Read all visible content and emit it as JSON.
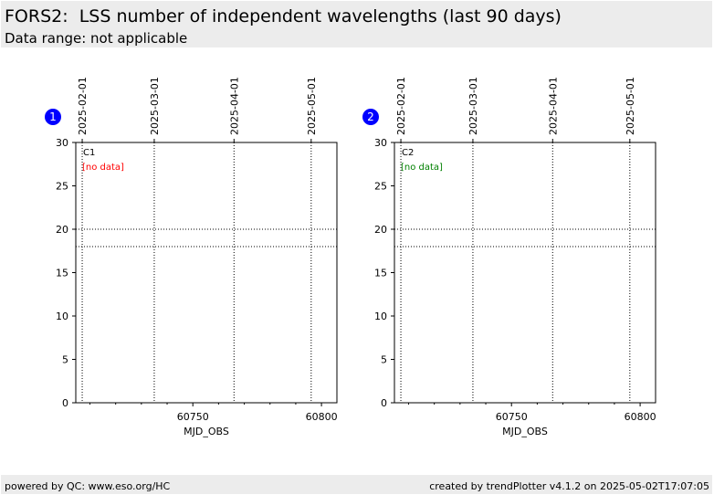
{
  "header": {
    "title": "FORS2:  LSS number of independent wavelengths (last 90 days)",
    "subtitle": "Data range: not applicable"
  },
  "footer": {
    "left": "powered by QC: www.eso.org/HC",
    "right": "created by trendPlotter v4.1.2 on 2025-05-02T17:07:05"
  },
  "colors": {
    "header_bg": "#ececec",
    "badge": "#0000ff",
    "no_data_1": "#ff0000",
    "no_data_2": "#008000"
  },
  "chart_data": [
    {
      "type": "scatter",
      "badge": "1",
      "panel_label": "C1",
      "status_text": "[no data]",
      "status_color": "#ff0000",
      "xlabel": "MJD_OBS",
      "ylabel": "",
      "xlim": [
        60704.5,
        60806
      ],
      "ylim": [
        0,
        30
      ],
      "x_ticks": [
        60750,
        60800
      ],
      "y_ticks": [
        0,
        5,
        10,
        15,
        20,
        25,
        30
      ],
      "date_ticks": [
        {
          "label": "2025-02-01",
          "mjd": 60707
        },
        {
          "label": "2025-03-01",
          "mjd": 60735
        },
        {
          "label": "2025-04-01",
          "mjd": 60766
        },
        {
          "label": "2025-05-01",
          "mjd": 60796
        }
      ],
      "reference_lines": [
        18,
        20
      ],
      "grid": true,
      "series": []
    },
    {
      "type": "scatter",
      "badge": "2",
      "panel_label": "C2",
      "status_text": "[no data]",
      "status_color": "#008000",
      "xlabel": "MJD_OBS",
      "ylabel": "",
      "xlim": [
        60704.5,
        60806
      ],
      "ylim": [
        0,
        30
      ],
      "x_ticks": [
        60750,
        60800
      ],
      "y_ticks": [
        0,
        5,
        10,
        15,
        20,
        25,
        30
      ],
      "date_ticks": [
        {
          "label": "2025-02-01",
          "mjd": 60707
        },
        {
          "label": "2025-03-01",
          "mjd": 60735
        },
        {
          "label": "2025-04-01",
          "mjd": 60766
        },
        {
          "label": "2025-05-01",
          "mjd": 60796
        }
      ],
      "reference_lines": [
        18,
        20
      ],
      "grid": true,
      "series": []
    }
  ]
}
